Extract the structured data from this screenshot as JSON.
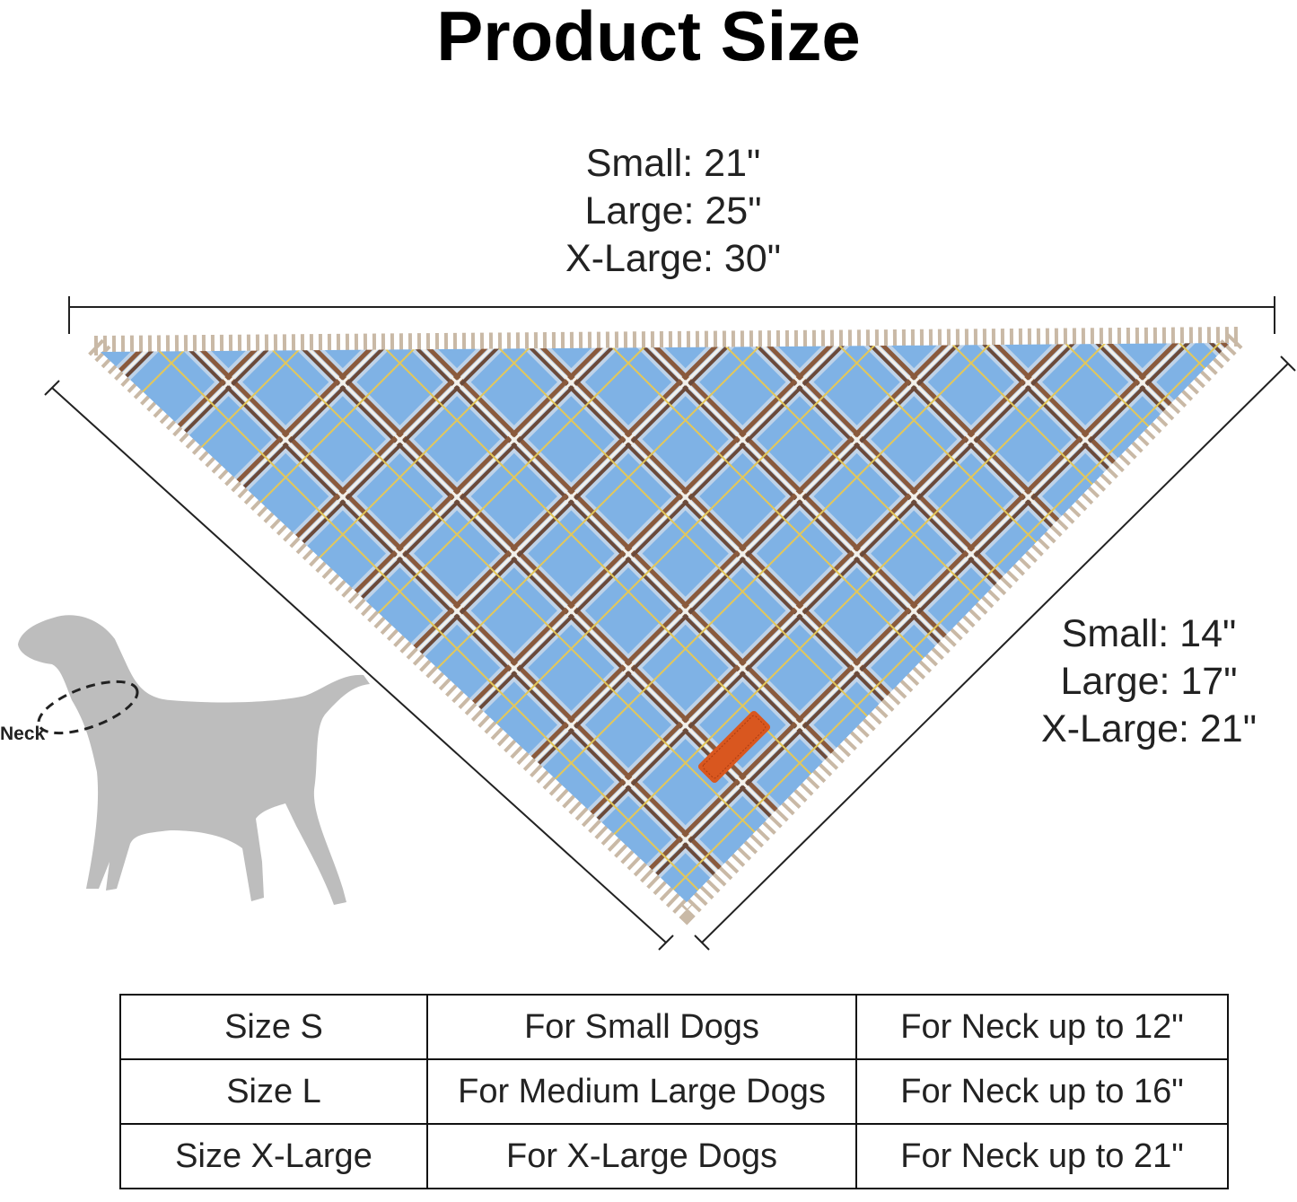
{
  "title": "Product Size",
  "width_dims": [
    "Small: 21\"",
    "Large: 25\"",
    "X-Large: 30\""
  ],
  "side_dims": [
    "Small: 14\"",
    "Large: 17\"",
    "X-Large: 21\""
  ],
  "dog_label": "Neck",
  "bandana_colors": {
    "base": "#7fb2e5",
    "brown": "#8a5a3c",
    "white": "#f4f1ea",
    "tag": "#d9571f"
  },
  "size_table": [
    [
      "Size S",
      "For Small Dogs",
      "For Neck up to 12\""
    ],
    [
      "Size L",
      "For Medium Large Dogs",
      "For Neck up to 16\""
    ],
    [
      "Size X-Large",
      "For X-Large Dogs",
      "For Neck up to 21\""
    ]
  ]
}
